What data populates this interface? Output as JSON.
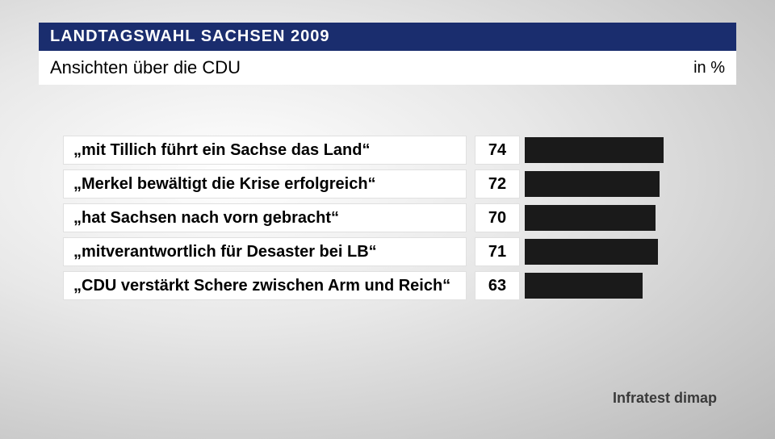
{
  "header": {
    "banner": "LANDTAGSWAHL SACHSEN 2009",
    "title": "Ansichten über die CDU",
    "unit": "in %",
    "banner_bg": "#1a2d6e",
    "banner_fg": "#ffffff"
  },
  "chart": {
    "type": "bar",
    "orientation": "horizontal",
    "max_value": 100,
    "bar_color": "#1a1a1a",
    "label_bg": "#ffffff",
    "label_fontsize": 20,
    "value_fontsize": 20,
    "rows": [
      {
        "label": "„mit Tillich führt ein Sachse das Land“",
        "value": 74
      },
      {
        "label": "„Merkel bewältigt die Krise erfolgreich“",
        "value": 72
      },
      {
        "label": "„hat Sachsen nach vorn gebracht“",
        "value": 70
      },
      {
        "label": "„mitverantwortlich für Desaster bei LB“",
        "value": 71
      },
      {
        "label": "„CDU verstärkt Schere zwischen Arm und Reich“",
        "value": 63
      }
    ]
  },
  "source": "Infratest dimap"
}
